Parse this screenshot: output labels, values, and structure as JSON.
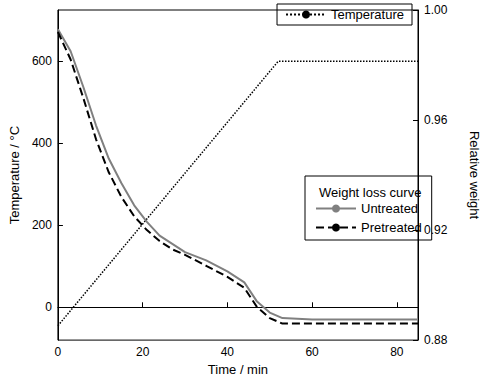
{
  "chart_data": {
    "type": "line",
    "x_label": "Time / min",
    "y_label": "Temperature / °C",
    "y2_label": "Relative weight",
    "legend_title": "Weight loss curve",
    "xlim": [
      0,
      85
    ],
    "xticks": [
      0,
      20,
      40,
      60,
      80
    ],
    "ylim": [
      -80,
      725
    ],
    "yticks": [
      0,
      200,
      400,
      600
    ],
    "y2lim": [
      0.88,
      1
    ],
    "y2ticks": [
      0.88,
      0.92,
      0.96,
      {
        "value": 1,
        "label": "1.00"
      }
    ],
    "grid": false,
    "legend": "upper right",
    "series": [
      {
        "name": "Temperature",
        "color": "#000000",
        "line_style": "dotted",
        "axis": "y",
        "x": [
          0,
          52,
          85
        ],
        "values": [
          -45,
          600,
          600
        ]
      },
      {
        "name": "Untreated",
        "color": "#808080",
        "line_style": "solid",
        "axis": "y2",
        "x": [
          0,
          3,
          6,
          9,
          12,
          15,
          18,
          21,
          24,
          27,
          30,
          35,
          40,
          44,
          47,
          50,
          53,
          60,
          85
        ],
        "values": [
          0.993,
          0.985,
          0.972,
          0.958,
          0.946,
          0.937,
          0.929,
          0.923,
          0.918,
          0.915,
          0.912,
          0.909,
          0.905,
          0.901,
          0.894,
          0.89,
          0.888,
          0.8875,
          0.8875
        ]
      },
      {
        "name": "Pretreated",
        "color": "#000000",
        "line_style": "dashed",
        "axis": "y2",
        "x": [
          0,
          3,
          6,
          9,
          12,
          15,
          18,
          21,
          24,
          27,
          30,
          35,
          40,
          44,
          47,
          50,
          53,
          60,
          85
        ],
        "values": [
          0.992,
          0.982,
          0.968,
          0.953,
          0.941,
          0.932,
          0.925,
          0.92,
          0.916,
          0.913,
          0.911,
          0.907,
          0.903,
          0.899,
          0.892,
          0.888,
          0.886,
          0.886,
          0.886
        ]
      }
    ]
  }
}
